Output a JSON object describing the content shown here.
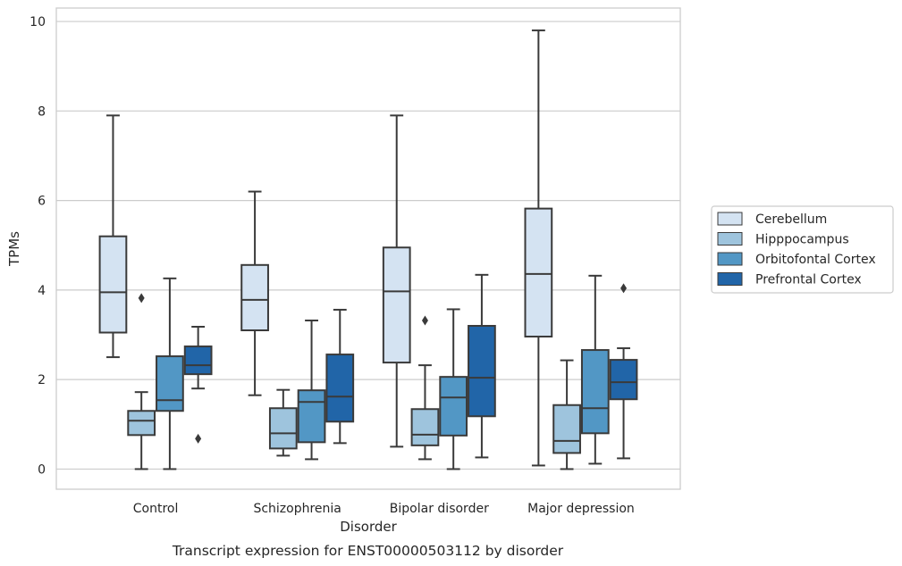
{
  "chart_data": {
    "type": "box",
    "caption": "Transcript expression for ENST00000503112 by disorder",
    "xlabel": "Disorder",
    "ylabel": "TPMs",
    "ylim": [
      -0.45,
      10.3
    ],
    "yticks": [
      0,
      2,
      4,
      6,
      8,
      10
    ],
    "grid": "horizontal",
    "legend_position": "right",
    "categories": [
      "Control",
      "Schizophrenia",
      "Bipolar disorder",
      "Major depression"
    ],
    "series": [
      {
        "name": "Cerebellum",
        "color": "#d4e3f2",
        "boxes": [
          {
            "whislo": 2.5,
            "q1": 3.05,
            "med": 3.95,
            "q3": 5.2,
            "whishi": 7.9,
            "fliers": []
          },
          {
            "whislo": 1.65,
            "q1": 3.1,
            "med": 3.78,
            "q3": 4.56,
            "whishi": 6.2,
            "fliers": []
          },
          {
            "whislo": 0.5,
            "q1": 2.38,
            "med": 3.97,
            "q3": 4.95,
            "whishi": 7.9,
            "fliers": []
          },
          {
            "whislo": 0.08,
            "q1": 2.96,
            "med": 4.36,
            "q3": 5.82,
            "whishi": 9.8,
            "fliers": []
          }
        ]
      },
      {
        "name": "Hipppocampus",
        "color": "#9ec4dd",
        "boxes": [
          {
            "whislo": 0.0,
            "q1": 0.76,
            "med": 1.08,
            "q3": 1.3,
            "whishi": 1.72,
            "fliers": [
              3.82
            ]
          },
          {
            "whislo": 0.3,
            "q1": 0.46,
            "med": 0.8,
            "q3": 1.36,
            "whishi": 1.77,
            "fliers": []
          },
          {
            "whislo": 0.22,
            "q1": 0.53,
            "med": 0.77,
            "q3": 1.34,
            "whishi": 2.32,
            "fliers": [
              3.32
            ]
          },
          {
            "whislo": 0.0,
            "q1": 0.36,
            "med": 0.63,
            "q3": 1.43,
            "whishi": 2.43,
            "fliers": []
          }
        ]
      },
      {
        "name": "Orbitofontal Cortex",
        "color": "#5297c5",
        "boxes": [
          {
            "whislo": 0.0,
            "q1": 1.3,
            "med": 1.54,
            "q3": 2.52,
            "whishi": 4.26,
            "fliers": []
          },
          {
            "whislo": 0.22,
            "q1": 0.6,
            "med": 1.5,
            "q3": 1.76,
            "whishi": 3.32,
            "fliers": []
          },
          {
            "whislo": 0.0,
            "q1": 0.75,
            "med": 1.6,
            "q3": 2.06,
            "whishi": 3.57,
            "fliers": []
          },
          {
            "whislo": 0.12,
            "q1": 0.8,
            "med": 1.36,
            "q3": 2.66,
            "whishi": 4.32,
            "fliers": []
          }
        ]
      },
      {
        "name": "Prefrontal Cortex",
        "color": "#2165a8",
        "boxes": [
          {
            "whislo": 1.8,
            "q1": 2.12,
            "med": 2.32,
            "q3": 2.74,
            "whishi": 3.18,
            "fliers": [
              0.68
            ]
          },
          {
            "whislo": 0.58,
            "q1": 1.06,
            "med": 1.62,
            "q3": 2.56,
            "whishi": 3.56,
            "fliers": []
          },
          {
            "whislo": 0.26,
            "q1": 1.18,
            "med": 2.04,
            "q3": 3.2,
            "whishi": 4.34,
            "fliers": []
          },
          {
            "whislo": 0.24,
            "q1": 1.56,
            "med": 1.94,
            "q3": 2.44,
            "whishi": 2.7,
            "fliers": [
              4.04
            ]
          }
        ]
      }
    ]
  }
}
